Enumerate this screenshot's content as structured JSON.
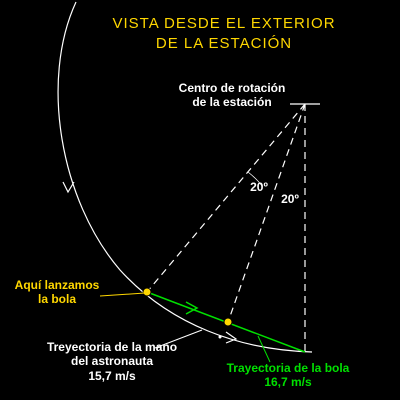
{
  "title": {
    "line1": "VISTA DESDE EL EXTERIOR",
    "line2": "DE LA ESTACIÓN"
  },
  "labels": {
    "center": {
      "line1": "Centro de rotación",
      "line2": "de la estación"
    },
    "launch": {
      "line1": "Aquí lanzamos",
      "line2": "la bola"
    },
    "hand": {
      "line1": "Treyectoria de la mano",
      "line2": "del astronauta",
      "line3": "15,7 m/s"
    },
    "ball": {
      "line1": "Trayectoria de la bola",
      "line2": "16,7 m/s"
    },
    "angle1": "20º",
    "angle2": "20º"
  },
  "colors": {
    "background": "#000000",
    "title": "#ffd700",
    "labels": "#ffd700",
    "lines": "#ffffff",
    "trajectory": "#00e000",
    "points": "#ffd700"
  }
}
